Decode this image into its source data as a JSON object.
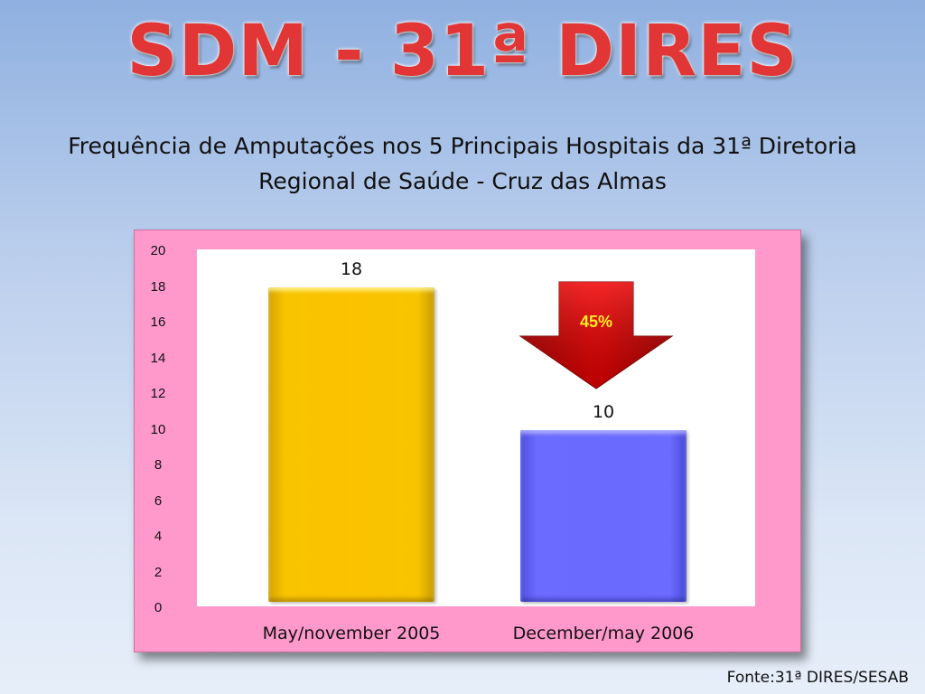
{
  "slide": {
    "title": "SDM - 31ª DIRES",
    "subtitle": "Frequência de Amputações nos 5 Principais Hospitais da 31ª Diretoria Regional de Saúde - Cruz das Almas",
    "source": "Fonte:31ª DIRES/SESAB"
  },
  "annotation": {
    "reduction_label": "45%",
    "arrow_icon": "down-arrow-icon",
    "arrow_color": "#d90000",
    "label_color": "#ffee22"
  },
  "colors": {
    "frame_background": "#ff99cc",
    "title_color": "#e23535"
  },
  "chart_data": {
    "type": "bar",
    "categories": [
      "May/november 2005",
      "December/may 2006"
    ],
    "values": [
      18,
      10
    ],
    "data_labels": [
      "18",
      "10"
    ],
    "bar_colors": [
      "#fbc200",
      "#6a6aff"
    ],
    "ylim": [
      0,
      20
    ],
    "y_ticks": [
      "0",
      "2",
      "4",
      "6",
      "8",
      "10",
      "12",
      "14",
      "16",
      "18",
      "20"
    ],
    "title": "",
    "xlabel": "",
    "ylabel": "",
    "grid": false,
    "legend": "none"
  }
}
